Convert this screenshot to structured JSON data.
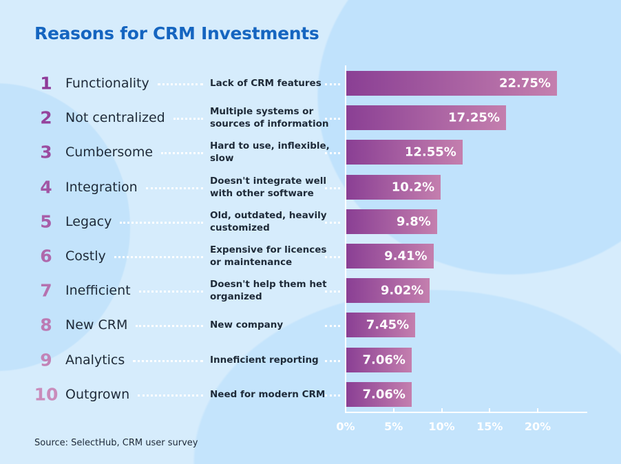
{
  "chart_data": {
    "type": "bar",
    "orientation": "horizontal",
    "title": "Reasons for CRM Investments",
    "ranks": [
      "1",
      "2",
      "3",
      "4",
      "5",
      "6",
      "7",
      "8",
      "9",
      "10"
    ],
    "categories": [
      "Functionality",
      "Not centralized",
      "Cumbersome",
      "Integration",
      "Legacy",
      "Costly",
      "Inefficient",
      "New CRM",
      "Analytics",
      "Outgrown"
    ],
    "descriptions": [
      "Lack of CRM features",
      "Multiple systems or sources of information",
      "Hard to use, inflexible, slow",
      "Doesn't integrate well with other software",
      "Old, outdated, heavily customized",
      "Expensive for licences or maintenance",
      "Doesn't help them het organized",
      "New company",
      "Inneficient reporting",
      "Need for modern CRM"
    ],
    "values": [
      22.75,
      17.25,
      12.55,
      10.2,
      9.8,
      9.41,
      9.02,
      7.45,
      7.06,
      7.06
    ],
    "value_labels": [
      "22.75%",
      "17.25%",
      "12.55%",
      "10.2%",
      "9.8%",
      "9.41%",
      "9.02%",
      "7.45%",
      "7.06%",
      "7.06%"
    ],
    "xlim": [
      0,
      25
    ],
    "x_ticks": [
      0,
      5,
      10,
      15,
      20
    ],
    "x_tick_labels": [
      "0%",
      "5%",
      "10%",
      "15%",
      "20%"
    ],
    "grid": false,
    "colors": {
      "title": "#1565c0",
      "bar_start": "#8a3f94",
      "bar_end": "#c47fae",
      "rank_first": "#8e3a98",
      "rank_last": "#c98cbb",
      "background": "#d6ecfc"
    }
  },
  "source": "Source: SelectHub, CRM user survey"
}
